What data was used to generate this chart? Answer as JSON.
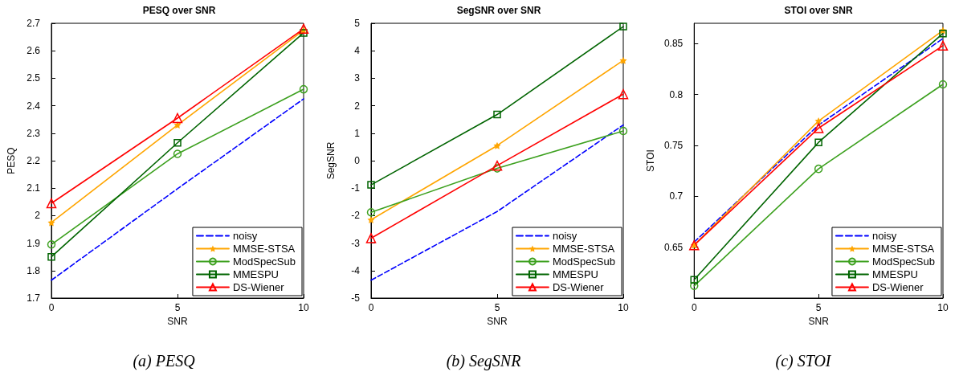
{
  "chart_data": [
    {
      "type": "line",
      "title": "PESQ over SNR",
      "xlabel": "SNR",
      "ylabel": "PESQ",
      "annotations": [
        "(a) PESQ"
      ],
      "x": [
        0,
        5,
        10
      ],
      "xlim": [
        0,
        10
      ],
      "xticks": [
        0,
        5,
        10
      ],
      "ylim": [
        1.7,
        2.7
      ],
      "yticks": [
        1.7,
        1.8,
        1.9,
        2,
        2.1,
        2.2,
        2.3,
        2.4,
        2.5,
        2.6,
        2.7
      ],
      "grid": false,
      "legend": "bottom right",
      "series": [
        {
          "name": "noisy",
          "color": "#0000ff",
          "marker": "none",
          "line_style": "dashed",
          "values": [
            1.765,
            2.098,
            2.425
          ]
        },
        {
          "name": "MMSE-STSA",
          "color": "#ffa500",
          "marker": "star",
          "values": [
            1.975,
            2.33,
            2.675
          ]
        },
        {
          "name": "ModSpecSub",
          "color": "#3ca01e",
          "marker": "circle",
          "values": [
            1.895,
            2.225,
            2.46
          ]
        },
        {
          "name": "MMESPU",
          "color": "#006400",
          "marker": "square",
          "values": [
            1.85,
            2.265,
            2.665
          ]
        },
        {
          "name": "DS-Wiener",
          "color": "#ff0000",
          "marker": "triangle",
          "values": [
            2.045,
            2.355,
            2.68
          ]
        }
      ]
    },
    {
      "type": "line",
      "title": "SegSNR over SNR",
      "xlabel": "SNR",
      "ylabel": "SegSNR",
      "annotations": [
        "(b) SegSNR"
      ],
      "x": [
        0,
        5,
        10
      ],
      "xlim": [
        0,
        10
      ],
      "xticks": [
        0,
        5,
        10
      ],
      "ylim": [
        -5,
        5
      ],
      "yticks": [
        -5,
        -4,
        -3,
        -2,
        -1,
        0,
        1,
        2,
        3,
        4,
        5
      ],
      "grid": false,
      "legend": "bottom right",
      "series": [
        {
          "name": "noisy",
          "color": "#0000ff",
          "marker": "none",
          "line_style": "dashed",
          "values": [
            -4.35,
            -1.85,
            1.3
          ]
        },
        {
          "name": "MMSE-STSA",
          "color": "#ffa500",
          "marker": "star",
          "values": [
            -2.15,
            0.55,
            3.65
          ]
        },
        {
          "name": "ModSpecSub",
          "color": "#3ca01e",
          "marker": "circle",
          "values": [
            -1.88,
            -0.28,
            1.08
          ]
        },
        {
          "name": "MMESPU",
          "color": "#006400",
          "marker": "square",
          "values": [
            -0.88,
            1.68,
            4.88
          ]
        },
        {
          "name": "DS-Wiener",
          "color": "#ff0000",
          "marker": "triangle",
          "values": [
            -2.82,
            -0.18,
            2.42
          ]
        }
      ]
    },
    {
      "type": "line",
      "title": "STOI over SNR",
      "xlabel": "SNR",
      "ylabel": "STOI",
      "annotations": [
        "(c) STOI"
      ],
      "x": [
        0,
        5,
        10
      ],
      "xlim": [
        0,
        10
      ],
      "xticks": [
        0,
        5,
        10
      ],
      "ylim": [
        0.6,
        0.87
      ],
      "yticks": [
        0.65,
        0.7,
        0.75,
        0.8,
        0.85
      ],
      "grid": false,
      "legend": "bottom right",
      "series": [
        {
          "name": "noisy",
          "color": "#0000ff",
          "marker": "none",
          "line_style": "dashed",
          "values": [
            0.655,
            0.77,
            0.855
          ]
        },
        {
          "name": "MMSE-STSA",
          "color": "#ffa500",
          "marker": "star",
          "values": [
            0.652,
            0.774,
            0.863
          ]
        },
        {
          "name": "ModSpecSub",
          "color": "#3ca01e",
          "marker": "circle",
          "values": [
            0.612,
            0.727,
            0.81
          ]
        },
        {
          "name": "MMESPU",
          "color": "#006400",
          "marker": "square",
          "values": [
            0.618,
            0.753,
            0.86
          ]
        },
        {
          "name": "DS-Wiener",
          "color": "#ff0000",
          "marker": "triangle",
          "values": [
            0.652,
            0.767,
            0.848
          ]
        }
      ]
    }
  ]
}
